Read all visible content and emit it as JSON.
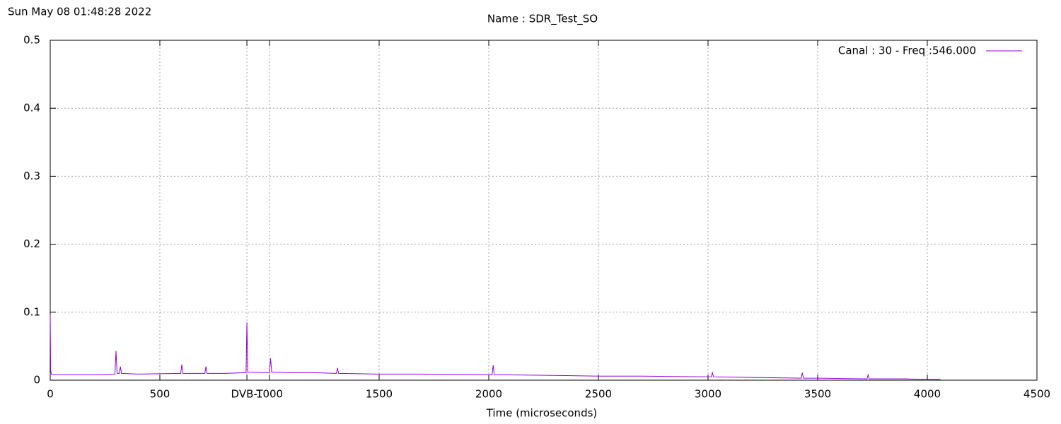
{
  "chart_data": {
    "type": "line",
    "timestamp": "Sun May 08 01:48:28 2022",
    "title": "Name : SDR_Test_SO",
    "x_label": "Time (microseconds)",
    "xlim": [
      0,
      4500
    ],
    "ylim": [
      0,
      0.5
    ],
    "xticks": [
      0,
      500,
      {
        "value": 897,
        "label": "DVB-T"
      },
      1000,
      1500,
      2000,
      2500,
      3000,
      3500,
      4000,
      4500
    ],
    "yticks": [
      0,
      0.1,
      0.2,
      0.3,
      0.4,
      0.5
    ],
    "grid": true,
    "legend": "top-right",
    "x": [
      0,
      2,
      5,
      10,
      50,
      100,
      200,
      295,
      300,
      305,
      315,
      320,
      325,
      400,
      595,
      600,
      605,
      705,
      710,
      715,
      800,
      893,
      897,
      901,
      1000,
      1005,
      1010,
      1100,
      1200,
      1305,
      1310,
      1315,
      1500,
      1700,
      2015,
      2020,
      2025,
      2300,
      2500,
      2700,
      3000,
      3015,
      3020,
      3025,
      3200,
      3425,
      3430,
      3435,
      3500,
      3725,
      3730,
      3735,
      3800,
      3900,
      4000,
      4060
    ],
    "series": [
      {
        "name": "Canal : 30 - Freq :546.000",
        "color": "#9400d3",
        "values": [
          0.097,
          0.015,
          0.009,
          0.008,
          0.008,
          0.008,
          0.008,
          0.009,
          0.043,
          0.01,
          0.01,
          0.02,
          0.01,
          0.009,
          0.01,
          0.023,
          0.01,
          0.01,
          0.02,
          0.01,
          0.01,
          0.011,
          0.085,
          0.012,
          0.011,
          0.032,
          0.012,
          0.011,
          0.011,
          0.01,
          0.018,
          0.01,
          0.009,
          0.009,
          0.008,
          0.022,
          0.008,
          0.007,
          0.006,
          0.006,
          0.005,
          0.005,
          0.011,
          0.005,
          0.004,
          0.003,
          0.011,
          0.003,
          0.003,
          0.002,
          0.008,
          0.002,
          0.002,
          0.002,
          0.001,
          0.001
        ]
      }
    ]
  }
}
